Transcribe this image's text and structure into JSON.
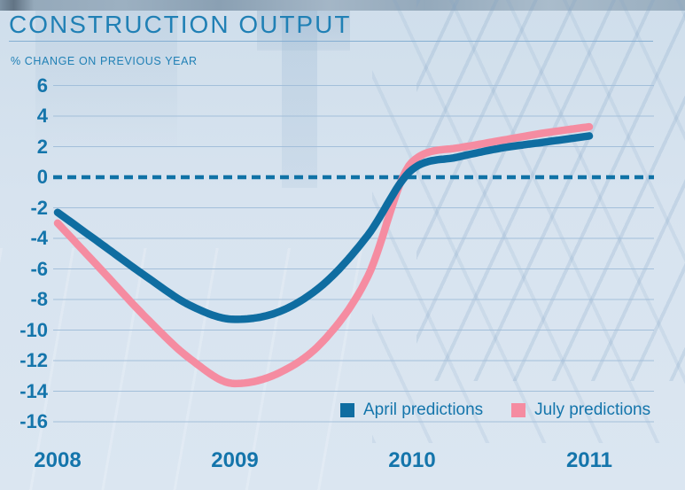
{
  "title": "CONSTRUCTION OUTPUT",
  "subtitle": "% CHANGE ON PREVIOUS YEAR",
  "colors": {
    "title_text": "#2080b5",
    "axis_text": "#1475ab",
    "grid": "#a3bfda",
    "zero_line": "#1072a6",
    "april": "#0f6da1",
    "july": "#f58ca1",
    "background": "#d6e3ef",
    "title_rule": "#85aed2"
  },
  "legend": [
    {
      "label": "April predictions",
      "color": "#0f6da1"
    },
    {
      "label": "July predictions",
      "color": "#f58ca1"
    }
  ],
  "chart_data": {
    "type": "line",
    "title": "CONSTRUCTION OUTPUT",
    "ylabel": "% CHANGE ON PREVIOUS YEAR",
    "xlabel": "",
    "xlim": [
      2008,
      2011.4
    ],
    "ylim": [
      -16,
      6
    ],
    "x_ticks": [
      2008,
      2009,
      2010,
      2011
    ],
    "y_ticks": [
      6,
      4,
      2,
      0,
      -2,
      -4,
      -6,
      -8,
      -10,
      -12,
      -14,
      -16
    ],
    "grid": true,
    "zero_line": "dashed",
    "legend_position": "bottom-right-inside",
    "x": [
      2008,
      2008.25,
      2008.5,
      2008.75,
      2009,
      2009.25,
      2009.5,
      2009.75,
      2010,
      2010.25,
      2010.5,
      2010.75,
      2011
    ],
    "series": [
      {
        "name": "April predictions",
        "color": "#0f6da1",
        "values": [
          -2.3,
          -4.4,
          -6.5,
          -8.4,
          -9.3,
          -8.8,
          -7.0,
          -3.8,
          0.5,
          1.3,
          1.9,
          2.3,
          2.7
        ]
      },
      {
        "name": "July predictions",
        "color": "#f58ca1",
        "values": [
          -3.0,
          -6.1,
          -9.2,
          -11.9,
          -13.5,
          -12.8,
          -10.7,
          -6.5,
          1.0,
          1.9,
          2.4,
          2.9,
          3.3
        ]
      }
    ]
  }
}
